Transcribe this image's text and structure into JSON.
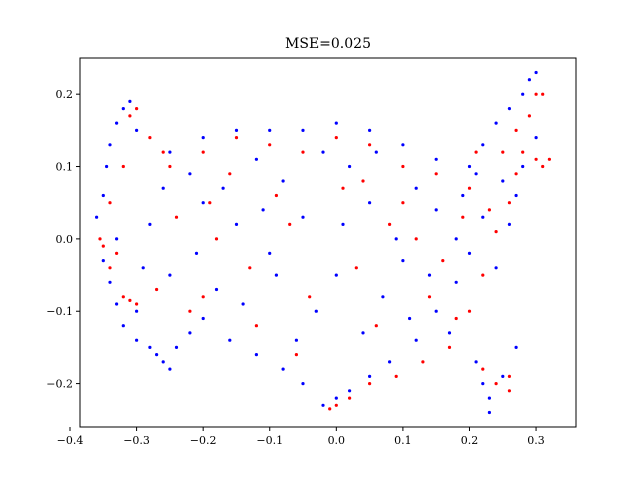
{
  "chart_data": {
    "type": "scatter",
    "title": "MSE=0.025",
    "xlabel": "",
    "ylabel": "",
    "xlim": [
      -0.385,
      0.36
    ],
    "ylim": [
      -0.26,
      0.25
    ],
    "xticks": [
      -0.4,
      -0.3,
      -0.2,
      -0.1,
      0.0,
      0.1,
      0.2,
      0.3
    ],
    "xtick_labels": [
      "−0.4",
      "−0.3",
      "−0.2",
      "−0.1",
      "0.0",
      "0.1",
      "0.2",
      "0.3"
    ],
    "yticks": [
      -0.2,
      -0.1,
      0.0,
      0.1,
      0.2
    ],
    "ytick_labels": [
      "−0.2",
      "−0.1",
      "0.0",
      "0.1",
      "0.2"
    ],
    "grid": false,
    "legend": "none",
    "series": [
      {
        "color": "#0000ff",
        "points": [
          [
            -0.36,
            0.03
          ],
          [
            -0.35,
            0.06
          ],
          [
            -0.345,
            0.1
          ],
          [
            -0.34,
            0.13
          ],
          [
            -0.33,
            0.16
          ],
          [
            -0.32,
            0.18
          ],
          [
            -0.31,
            0.19
          ],
          [
            -0.3,
            0.15
          ],
          [
            -0.35,
            -0.03
          ],
          [
            -0.34,
            -0.06
          ],
          [
            -0.33,
            -0.09
          ],
          [
            -0.32,
            -0.12
          ],
          [
            -0.3,
            -0.14
          ],
          [
            -0.28,
            -0.15
          ],
          [
            -0.27,
            -0.16
          ],
          [
            -0.26,
            -0.17
          ],
          [
            -0.25,
            -0.18
          ],
          [
            -0.24,
            -0.15
          ],
          [
            -0.22,
            -0.13
          ],
          [
            -0.2,
            -0.11
          ],
          [
            -0.25,
            0.12
          ],
          [
            -0.2,
            0.14
          ],
          [
            -0.15,
            0.15
          ],
          [
            -0.1,
            0.15
          ],
          [
            -0.05,
            0.15
          ],
          [
            0.0,
            0.16
          ],
          [
            0.05,
            0.15
          ],
          [
            0.1,
            0.13
          ],
          [
            0.15,
            0.11
          ],
          [
            0.2,
            0.1
          ],
          [
            0.22,
            0.13
          ],
          [
            0.24,
            0.16
          ],
          [
            0.26,
            0.18
          ],
          [
            0.28,
            0.2
          ],
          [
            0.29,
            0.22
          ],
          [
            0.3,
            0.23
          ],
          [
            0.25,
            0.08
          ],
          [
            0.22,
            0.03
          ],
          [
            0.2,
            -0.02
          ],
          [
            0.18,
            -0.06
          ],
          [
            0.15,
            -0.1
          ],
          [
            0.12,
            -0.14
          ],
          [
            0.08,
            -0.17
          ],
          [
            0.05,
            -0.19
          ],
          [
            0.02,
            -0.21
          ],
          [
            0.0,
            -0.22
          ],
          [
            -0.02,
            -0.23
          ],
          [
            -0.05,
            -0.2
          ],
          [
            -0.08,
            -0.18
          ],
          [
            -0.12,
            -0.16
          ],
          [
            -0.16,
            -0.14
          ],
          [
            0.21,
            -0.17
          ],
          [
            0.22,
            -0.2
          ],
          [
            0.23,
            -0.22
          ],
          [
            0.23,
            -0.24
          ],
          [
            0.25,
            -0.19
          ],
          [
            0.27,
            -0.15
          ],
          [
            -0.2,
            0.05
          ],
          [
            -0.15,
            0.02
          ],
          [
            -0.1,
            -0.02
          ],
          [
            -0.05,
            0.03
          ],
          [
            0.0,
            -0.05
          ],
          [
            0.05,
            0.05
          ],
          [
            0.1,
            -0.03
          ],
          [
            0.15,
            0.04
          ],
          [
            -0.25,
            -0.05
          ],
          [
            -0.18,
            -0.07
          ],
          [
            -0.08,
            0.08
          ],
          [
            0.02,
            0.1
          ],
          [
            0.12,
            0.07
          ],
          [
            0.18,
            0.0
          ],
          [
            -0.28,
            0.02
          ],
          [
            -0.22,
            0.09
          ],
          [
            -0.12,
            0.11
          ],
          [
            -0.03,
            -0.1
          ],
          [
            0.07,
            -0.08
          ],
          [
            0.14,
            -0.05
          ],
          [
            0.26,
            0.02
          ],
          [
            0.28,
            0.1
          ],
          [
            -0.3,
            -0.1
          ],
          [
            -0.14,
            -0.09
          ],
          [
            0.04,
            -0.13
          ],
          [
            0.09,
            0.0
          ],
          [
            -0.06,
            -0.14
          ],
          [
            -0.17,
            0.07
          ],
          [
            0.19,
            0.06
          ],
          [
            0.24,
            -0.04
          ],
          [
            0.3,
            0.14
          ],
          [
            -0.33,
            0.0
          ],
          [
            -0.26,
            0.07
          ],
          [
            -0.11,
            0.04
          ],
          [
            0.01,
            0.02
          ],
          [
            0.11,
            -0.11
          ],
          [
            0.17,
            -0.13
          ],
          [
            -0.02,
            0.12
          ],
          [
            -0.09,
            -0.05
          ],
          [
            0.06,
            0.12
          ],
          [
            -0.21,
            -0.02
          ],
          [
            -0.29,
            -0.04
          ],
          [
            0.27,
            0.06
          ],
          [
            0.21,
            0.09
          ]
        ]
      },
      {
        "color": "#ff0000",
        "points": [
          [
            -0.355,
            0.0
          ],
          [
            -0.35,
            -0.01
          ],
          [
            -0.34,
            -0.04
          ],
          [
            -0.32,
            -0.08
          ],
          [
            -0.31,
            -0.085
          ],
          [
            -0.3,
            -0.09
          ],
          [
            -0.34,
            0.05
          ],
          [
            -0.32,
            0.1
          ],
          [
            -0.31,
            0.17
          ],
          [
            -0.3,
            0.18
          ],
          [
            -0.28,
            0.14
          ],
          [
            -0.25,
            0.1
          ],
          [
            -0.2,
            0.12
          ],
          [
            -0.15,
            0.14
          ],
          [
            -0.1,
            0.13
          ],
          [
            -0.05,
            0.12
          ],
          [
            0.0,
            0.14
          ],
          [
            0.05,
            0.13
          ],
          [
            0.1,
            0.05
          ],
          [
            0.15,
            0.09
          ],
          [
            0.2,
            0.07
          ],
          [
            0.25,
            0.12
          ],
          [
            0.27,
            0.15
          ],
          [
            0.28,
            0.12
          ],
          [
            0.3,
            0.11
          ],
          [
            0.31,
            0.1
          ],
          [
            0.32,
            0.11
          ],
          [
            0.3,
            0.2
          ],
          [
            0.31,
            0.2
          ],
          [
            0.26,
            0.05
          ],
          [
            0.24,
            0.01
          ],
          [
            0.22,
            -0.05
          ],
          [
            0.2,
            -0.1
          ],
          [
            0.17,
            -0.15
          ],
          [
            0.13,
            -0.17
          ],
          [
            0.09,
            -0.19
          ],
          [
            0.05,
            -0.2
          ],
          [
            0.02,
            -0.22
          ],
          [
            0.0,
            -0.23
          ],
          [
            -0.01,
            -0.235
          ],
          [
            0.22,
            -0.18
          ],
          [
            0.24,
            -0.2
          ],
          [
            0.26,
            -0.19
          ],
          [
            0.26,
            -0.21
          ],
          [
            -0.22,
            -0.1
          ],
          [
            -0.2,
            -0.08
          ],
          [
            -0.18,
            0.0
          ],
          [
            -0.13,
            -0.04
          ],
          [
            -0.07,
            0.02
          ],
          [
            0.03,
            -0.04
          ],
          [
            0.08,
            0.02
          ],
          [
            0.12,
            0.0
          ],
          [
            0.16,
            -0.03
          ],
          [
            -0.24,
            0.03
          ],
          [
            -0.16,
            0.09
          ],
          [
            -0.04,
            -0.08
          ],
          [
            0.06,
            -0.12
          ],
          [
            0.19,
            0.03
          ],
          [
            -0.27,
            -0.07
          ],
          [
            -0.09,
            0.06
          ],
          [
            0.01,
            0.07
          ],
          [
            0.14,
            -0.08
          ],
          [
            0.23,
            0.04
          ],
          [
            0.29,
            0.17
          ],
          [
            -0.33,
            -0.02
          ],
          [
            -0.12,
            -0.12
          ],
          [
            0.1,
            0.1
          ],
          [
            -0.19,
            0.05
          ],
          [
            0.04,
            0.08
          ],
          [
            0.18,
            -0.11
          ],
          [
            -0.06,
            -0.16
          ],
          [
            0.21,
            0.12
          ],
          [
            -0.26,
            0.12
          ],
          [
            0.27,
            0.09
          ]
        ]
      }
    ]
  }
}
